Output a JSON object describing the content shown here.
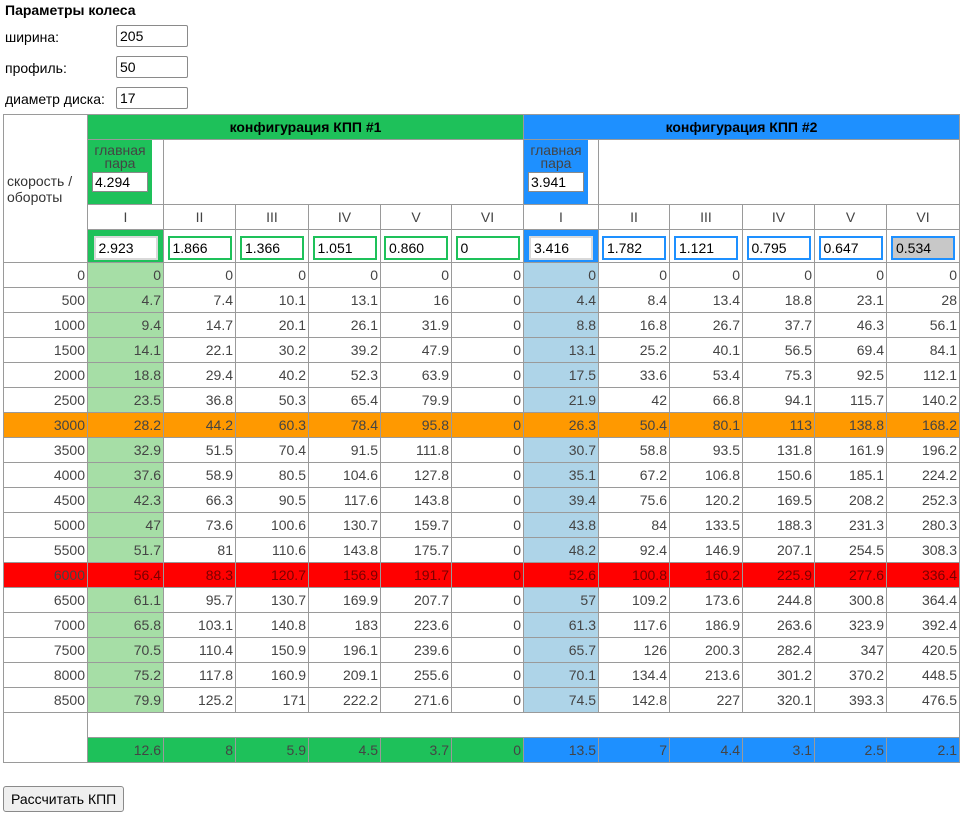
{
  "title": "Параметры колеса",
  "wheel": {
    "width_label": "ширина:",
    "width_value": "205",
    "profile_label": "профиль:",
    "profile_value": "50",
    "rim_label": "диаметр диска:",
    "rim_value": "17"
  },
  "table": {
    "corner_label": "скорость / обороты",
    "config1_title": "конфигурация КПП #1",
    "config2_title": "конфигурация КПП #2",
    "main_pair_label": "главная пара",
    "config1_main_pair": "4.294",
    "config2_main_pair": "3.941",
    "gear_names": [
      "I",
      "II",
      "III",
      "IV",
      "V",
      "VI"
    ],
    "config1_ratios": [
      "2.923",
      "1.866",
      "1.366",
      "1.051",
      "0.860",
      "0"
    ],
    "config2_ratios": [
      "3.416",
      "1.782",
      "1.121",
      "0.795",
      "0.647",
      "0.534"
    ],
    "rows": [
      {
        "rpm": "0",
        "c1": [
          "0",
          "0",
          "0",
          "0",
          "0",
          "0"
        ],
        "c2": [
          "0",
          "0",
          "0",
          "0",
          "0",
          "0"
        ]
      },
      {
        "rpm": "500",
        "c1": [
          "4.7",
          "7.4",
          "10.1",
          "13.1",
          "16",
          "0"
        ],
        "c2": [
          "4.4",
          "8.4",
          "13.4",
          "18.8",
          "23.1",
          "28"
        ]
      },
      {
        "rpm": "1000",
        "c1": [
          "9.4",
          "14.7",
          "20.1",
          "26.1",
          "31.9",
          "0"
        ],
        "c2": [
          "8.8",
          "16.8",
          "26.7",
          "37.7",
          "46.3",
          "56.1"
        ]
      },
      {
        "rpm": "1500",
        "c1": [
          "14.1",
          "22.1",
          "30.2",
          "39.2",
          "47.9",
          "0"
        ],
        "c2": [
          "13.1",
          "25.2",
          "40.1",
          "56.5",
          "69.4",
          "84.1"
        ]
      },
      {
        "rpm": "2000",
        "c1": [
          "18.8",
          "29.4",
          "40.2",
          "52.3",
          "63.9",
          "0"
        ],
        "c2": [
          "17.5",
          "33.6",
          "53.4",
          "75.3",
          "92.5",
          "112.1"
        ]
      },
      {
        "rpm": "2500",
        "c1": [
          "23.5",
          "36.8",
          "50.3",
          "65.4",
          "79.9",
          "0"
        ],
        "c2": [
          "21.9",
          "42",
          "66.8",
          "94.1",
          "115.7",
          "140.2"
        ]
      },
      {
        "rpm": "3000",
        "c1": [
          "28.2",
          "44.2",
          "60.3",
          "78.4",
          "95.8",
          "0"
        ],
        "c2": [
          "26.3",
          "50.4",
          "80.1",
          "113",
          "138.8",
          "168.2"
        ],
        "highlight": "orange"
      },
      {
        "rpm": "3500",
        "c1": [
          "32.9",
          "51.5",
          "70.4",
          "91.5",
          "111.8",
          "0"
        ],
        "c2": [
          "30.7",
          "58.8",
          "93.5",
          "131.8",
          "161.9",
          "196.2"
        ]
      },
      {
        "rpm": "4000",
        "c1": [
          "37.6",
          "58.9",
          "80.5",
          "104.6",
          "127.8",
          "0"
        ],
        "c2": [
          "35.1",
          "67.2",
          "106.8",
          "150.6",
          "185.1",
          "224.2"
        ]
      },
      {
        "rpm": "4500",
        "c1": [
          "42.3",
          "66.3",
          "90.5",
          "117.6",
          "143.8",
          "0"
        ],
        "c2": [
          "39.4",
          "75.6",
          "120.2",
          "169.5",
          "208.2",
          "252.3"
        ]
      },
      {
        "rpm": "5000",
        "c1": [
          "47",
          "73.6",
          "100.6",
          "130.7",
          "159.7",
          "0"
        ],
        "c2": [
          "43.8",
          "84",
          "133.5",
          "188.3",
          "231.3",
          "280.3"
        ]
      },
      {
        "rpm": "5500",
        "c1": [
          "51.7",
          "81",
          "110.6",
          "143.8",
          "175.7",
          "0"
        ],
        "c2": [
          "48.2",
          "92.4",
          "146.9",
          "207.1",
          "254.5",
          "308.3"
        ]
      },
      {
        "rpm": "6000",
        "c1": [
          "56.4",
          "88.3",
          "120.7",
          "156.9",
          "191.7",
          "0"
        ],
        "c2": [
          "52.6",
          "100.8",
          "160.2",
          "225.9",
          "277.6",
          "336.4"
        ],
        "highlight": "red"
      },
      {
        "rpm": "6500",
        "c1": [
          "61.1",
          "95.7",
          "130.7",
          "169.9",
          "207.7",
          "0"
        ],
        "c2": [
          "57",
          "109.2",
          "173.6",
          "244.8",
          "300.8",
          "364.4"
        ]
      },
      {
        "rpm": "7000",
        "c1": [
          "65.8",
          "103.1",
          "140.8",
          "183",
          "223.6",
          "0"
        ],
        "c2": [
          "61.3",
          "117.6",
          "186.9",
          "263.6",
          "323.9",
          "392.4"
        ]
      },
      {
        "rpm": "7500",
        "c1": [
          "70.5",
          "110.4",
          "150.9",
          "196.1",
          "239.6",
          "0"
        ],
        "c2": [
          "65.7",
          "126",
          "200.3",
          "282.4",
          "347",
          "420.5"
        ]
      },
      {
        "rpm": "8000",
        "c1": [
          "75.2",
          "117.8",
          "160.9",
          "209.1",
          "255.6",
          "0"
        ],
        "c2": [
          "70.1",
          "134.4",
          "213.6",
          "301.2",
          "370.2",
          "448.5"
        ]
      },
      {
        "rpm": "8500",
        "c1": [
          "79.9",
          "125.2",
          "171",
          "222.2",
          "271.6",
          "0"
        ],
        "c2": [
          "74.5",
          "142.8",
          "227",
          "320.1",
          "393.3",
          "476.5"
        ]
      }
    ],
    "config1_diffs": [
      "12.6",
      "8",
      "5.9",
      "4.5",
      "3.7",
      "0"
    ],
    "config2_diffs": [
      "13.5",
      "7",
      "4.4",
      "3.1",
      "2.5",
      "2.1"
    ]
  },
  "calc_button_label": "Рассчитать КПП",
  "colors": {
    "config1": "#1ec15a",
    "config2": "#1e90ff",
    "config1_first_gear": "#a6dea6",
    "config2_first_gear": "#aed4e8",
    "highlight_orange": "#ff9900",
    "highlight_red": "#ff0000"
  }
}
